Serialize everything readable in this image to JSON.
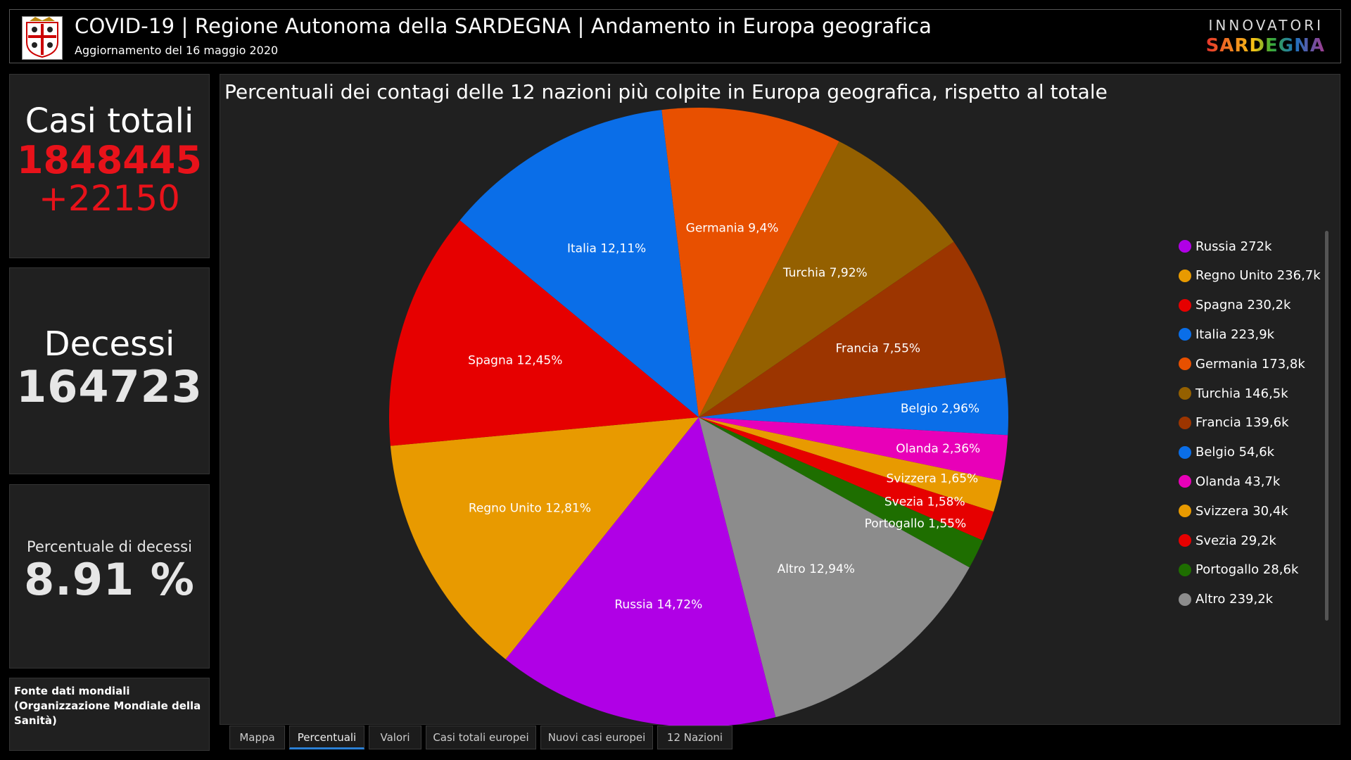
{
  "header": {
    "title": "COVID-19 | Regione Autonoma della SARDEGNA | Andamento in Europa geografica",
    "subtitle": "Aggiornamento del 16 maggio 2020",
    "brand_top": "INNOVATORI",
    "brand_bottom": "SARDEGNA"
  },
  "cards": {
    "total_label": "Casi totali",
    "total_value": "1848445",
    "total_delta": "+22150",
    "deaths_label": "Decessi",
    "deaths_value": "164723",
    "pct_label": "Percentuale di decessi",
    "pct_value": "8.91 %",
    "source": "Fonte dati mondiali (Organizzazione Mondiale della Sanità)"
  },
  "chart_data": {
    "type": "pie",
    "title": "Percentuali dei contagi delle 12 nazioni più colpite in Europa geografica, rispetto al totale",
    "legend_position": "right",
    "slices": [
      {
        "name": "Russia",
        "value": 14.72,
        "label": "Russia 14,72%",
        "legend": "Russia 272k",
        "color": "#b000e6"
      },
      {
        "name": "Regno Unito",
        "value": 12.81,
        "label": "Regno Unito 12,81%",
        "legend": "Regno Unito 236,7k",
        "color": "#e89a00"
      },
      {
        "name": "Spagna",
        "value": 12.45,
        "label": "Spagna 12,45%",
        "legend": "Spagna 230,2k",
        "color": "#e60000"
      },
      {
        "name": "Italia",
        "value": 12.11,
        "label": "Italia 12,11%",
        "legend": "Italia 223,9k",
        "color": "#0a6ee8"
      },
      {
        "name": "Germania",
        "value": 9.4,
        "label": "Germania 9,4%",
        "legend": "Germania 173,8k",
        "color": "#e85000"
      },
      {
        "name": "Turchia",
        "value": 7.92,
        "label": "Turchia 7,92%",
        "legend": "Turchia 146,5k",
        "color": "#946000"
      },
      {
        "name": "Francia",
        "value": 7.55,
        "label": "Francia 7,55%",
        "legend": "Francia 139,6k",
        "color": "#9c3500"
      },
      {
        "name": "Belgio",
        "value": 2.96,
        "label": "Belgio 2,96%",
        "legend": "Belgio 54,6k",
        "color": "#0a6ee8"
      },
      {
        "name": "Olanda",
        "value": 2.36,
        "label": "Olanda 2,36%",
        "legend": "Olanda 43,7k",
        "color": "#e800b8"
      },
      {
        "name": "Svizzera",
        "value": 1.65,
        "label": "Svizzera 1,65%",
        "legend": "Svizzera 30,4k",
        "color": "#e89a00"
      },
      {
        "name": "Svezia",
        "value": 1.58,
        "label": "Svezia 1,58%",
        "legend": "Svezia 29,2k",
        "color": "#e60000"
      },
      {
        "name": "Portogallo",
        "value": 1.55,
        "label": "Portogallo 1,55%",
        "legend": "Portogallo 28,6k",
        "color": "#1e6e00"
      },
      {
        "name": "Altro",
        "value": 12.94,
        "label": "Altro 12,94%",
        "legend": "Altro 239,2k",
        "color": "#8c8c8c"
      }
    ]
  },
  "tabs": [
    "Mappa",
    "Percentuali",
    "Valori",
    "Casi totali europei",
    "Nuovi casi europei",
    "12 Nazioni"
  ],
  "active_tab": "Percentuali"
}
